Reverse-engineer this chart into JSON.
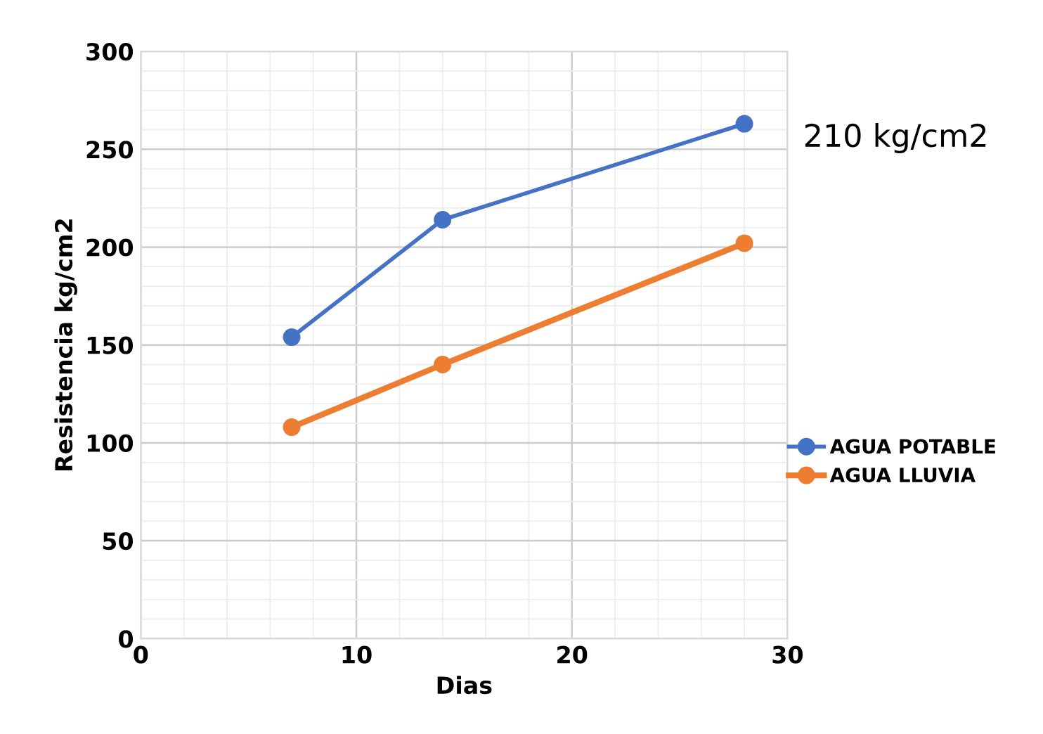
{
  "chart_data": {
    "type": "line",
    "xlabel": "Dias",
    "ylabel": "Resistencia kg/cm2",
    "annotations": [
      "210 kg/cm2"
    ],
    "x": [
      7,
      14,
      28
    ],
    "series": [
      {
        "name": "AGUA POTABLE",
        "color": "#4472c4",
        "values": [
          154,
          214,
          263
        ]
      },
      {
        "name": "AGUA LLUVIA",
        "color": "#ed7d31",
        "values": [
          108,
          140,
          202
        ]
      }
    ],
    "xlim": [
      0,
      30
    ],
    "xticks": [
      0,
      10,
      20,
      30
    ],
    "ylim": [
      0,
      300
    ],
    "yticks": [
      0,
      50,
      100,
      150,
      200,
      250,
      300
    ],
    "grid": true,
    "legend": "right",
    "marker": "circle",
    "line_style": "solid"
  }
}
